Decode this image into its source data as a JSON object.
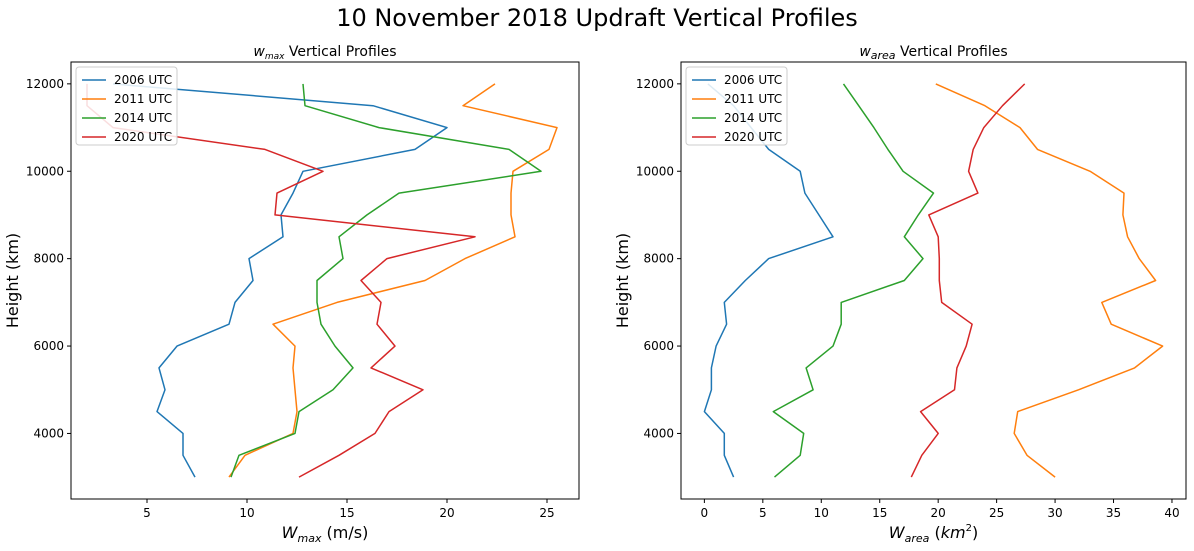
{
  "figure": {
    "suptitle": "10 November 2018 Updraft Vertical Profiles"
  },
  "chart_data": [
    {
      "type": "line",
      "title_var": "w",
      "title_sub": "max",
      "title_rest": " Vertical Profiles",
      "xlabel_var": "W",
      "xlabel_sub": "max",
      "xlabel_rest": " (m/s)",
      "ylabel": "Height (km)",
      "xlim": [
        1.2,
        26.6
      ],
      "ylim": [
        2500,
        12500
      ],
      "xticks": [
        5,
        10,
        15,
        20,
        25
      ],
      "yticks": [
        4000,
        6000,
        8000,
        10000,
        12000
      ],
      "legend_position": "upper-left",
      "y": [
        3000,
        3500,
        4000,
        4500,
        5000,
        5500,
        6000,
        6500,
        7000,
        7500,
        8000,
        8500,
        9000,
        9500,
        10000,
        10500,
        11000,
        11500,
        12000
      ],
      "series": [
        {
          "name": "2006 UTC",
          "color": "#1f77b4",
          "x": [
            7.4,
            6.8,
            6.8,
            5.5,
            5.9,
            5.6,
            6.5,
            9.1,
            9.4,
            10.3,
            10.1,
            11.8,
            11.7,
            12.3,
            12.8,
            18.4,
            20.0,
            16.3,
            3.3
          ]
        },
        {
          "name": "2011 UTC",
          "color": "#ff7f0e",
          "x": [
            9.1,
            9.9,
            12.3,
            12.5,
            12.4,
            12.3,
            12.4,
            11.3,
            14.5,
            18.9,
            20.9,
            23.4,
            23.2,
            23.2,
            23.3,
            25.1,
            25.5,
            20.8,
            22.4
          ]
        },
        {
          "name": "2014 UTC",
          "color": "#2ca02c",
          "x": [
            9.2,
            9.6,
            12.4,
            12.6,
            14.3,
            15.3,
            14.4,
            13.7,
            13.5,
            13.5,
            14.8,
            14.6,
            16.0,
            17.6,
            24.7,
            23.1,
            16.6,
            12.9,
            12.8
          ]
        },
        {
          "name": "2020 UTC",
          "color": "#d62728",
          "x": [
            12.6,
            14.6,
            16.4,
            17.1,
            18.8,
            16.2,
            17.4,
            16.5,
            16.7,
            15.7,
            17.0,
            21.4,
            11.4,
            11.5,
            13.8,
            10.9,
            3.3,
            2.0,
            2.0
          ]
        }
      ]
    },
    {
      "type": "line",
      "title_var": "w",
      "title_sub": "area",
      "title_rest": " Vertical Profiles",
      "xlabel_var": "W",
      "xlabel_sub": "area",
      "xlabel_unit": "km",
      "xlabel_sup": "2",
      "ylabel": "Height (km)",
      "xlim": [
        -2.0,
        41.2
      ],
      "ylim": [
        2500,
        12500
      ],
      "xticks": [
        0,
        5,
        10,
        15,
        20,
        25,
        30,
        35,
        40
      ],
      "yticks": [
        4000,
        6000,
        8000,
        10000,
        12000
      ],
      "legend_position": "upper-left",
      "y": [
        3000,
        3500,
        4000,
        4500,
        5000,
        5500,
        6000,
        6500,
        7000,
        7500,
        8000,
        8500,
        9000,
        9500,
        10000,
        10500,
        11000,
        11500,
        12000
      ],
      "series": [
        {
          "name": "2006 UTC",
          "color": "#1f77b4",
          "x": [
            2.5,
            1.7,
            1.7,
            0.0,
            0.6,
            0.6,
            1.0,
            1.9,
            1.7,
            3.5,
            5.5,
            11.0,
            9.8,
            8.6,
            8.2,
            5.5,
            4.0,
            2.5,
            0.3
          ]
        },
        {
          "name": "2011 UTC",
          "color": "#ff7f0e",
          "x": [
            30.0,
            27.6,
            26.5,
            26.8,
            32.0,
            36.8,
            39.2,
            34.8,
            34.0,
            38.6,
            37.2,
            36.2,
            35.8,
            35.9,
            33.0,
            28.5,
            27.0,
            24.0,
            19.8
          ]
        },
        {
          "name": "2014 UTC",
          "color": "#2ca02c",
          "x": [
            6.0,
            8.2,
            8.5,
            5.9,
            9.3,
            8.7,
            11.0,
            11.7,
            11.7,
            17.1,
            18.7,
            17.1,
            18.3,
            19.6,
            17.0,
            15.7,
            14.5,
            13.2,
            11.9
          ]
        },
        {
          "name": "2020 UTC",
          "color": "#d62728",
          "x": [
            17.7,
            18.6,
            20.0,
            18.5,
            21.4,
            21.6,
            22.4,
            22.9,
            20.3,
            20.1,
            20.1,
            20.0,
            19.2,
            23.4,
            22.6,
            23.0,
            23.9,
            25.5,
            27.4
          ]
        }
      ]
    }
  ]
}
